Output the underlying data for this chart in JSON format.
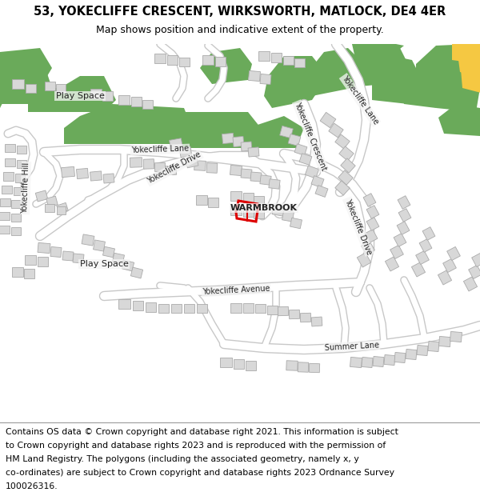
{
  "title_line1": "53, YOKECLIFFE CRESCENT, WIRKSWORTH, MATLOCK, DE4 4ER",
  "title_line2": "Map shows position and indicative extent of the property.",
  "footer_lines": [
    "Contains OS data © Crown copyright and database right 2021. This information is subject",
    "to Crown copyright and database rights 2023 and is reproduced with the permission of",
    "HM Land Registry. The polygons (including the associated geometry, namely x, y",
    "co-ordinates) are subject to Crown copyright and database rights 2023 Ordnance Survey",
    "100026316."
  ],
  "map_bg": "#f5f5f5",
  "road_color": "#ffffff",
  "road_edge_color": "#c8c8c8",
  "building_color": "#d8d8d8",
  "building_edge": "#aaaaaa",
  "green_color": "#6aaa5a",
  "orange_color": "#f5c842",
  "red_poly_color": "#dd0000",
  "title_fontsize": 10.5,
  "subtitle_fontsize": 9,
  "footer_fontsize": 7.8
}
